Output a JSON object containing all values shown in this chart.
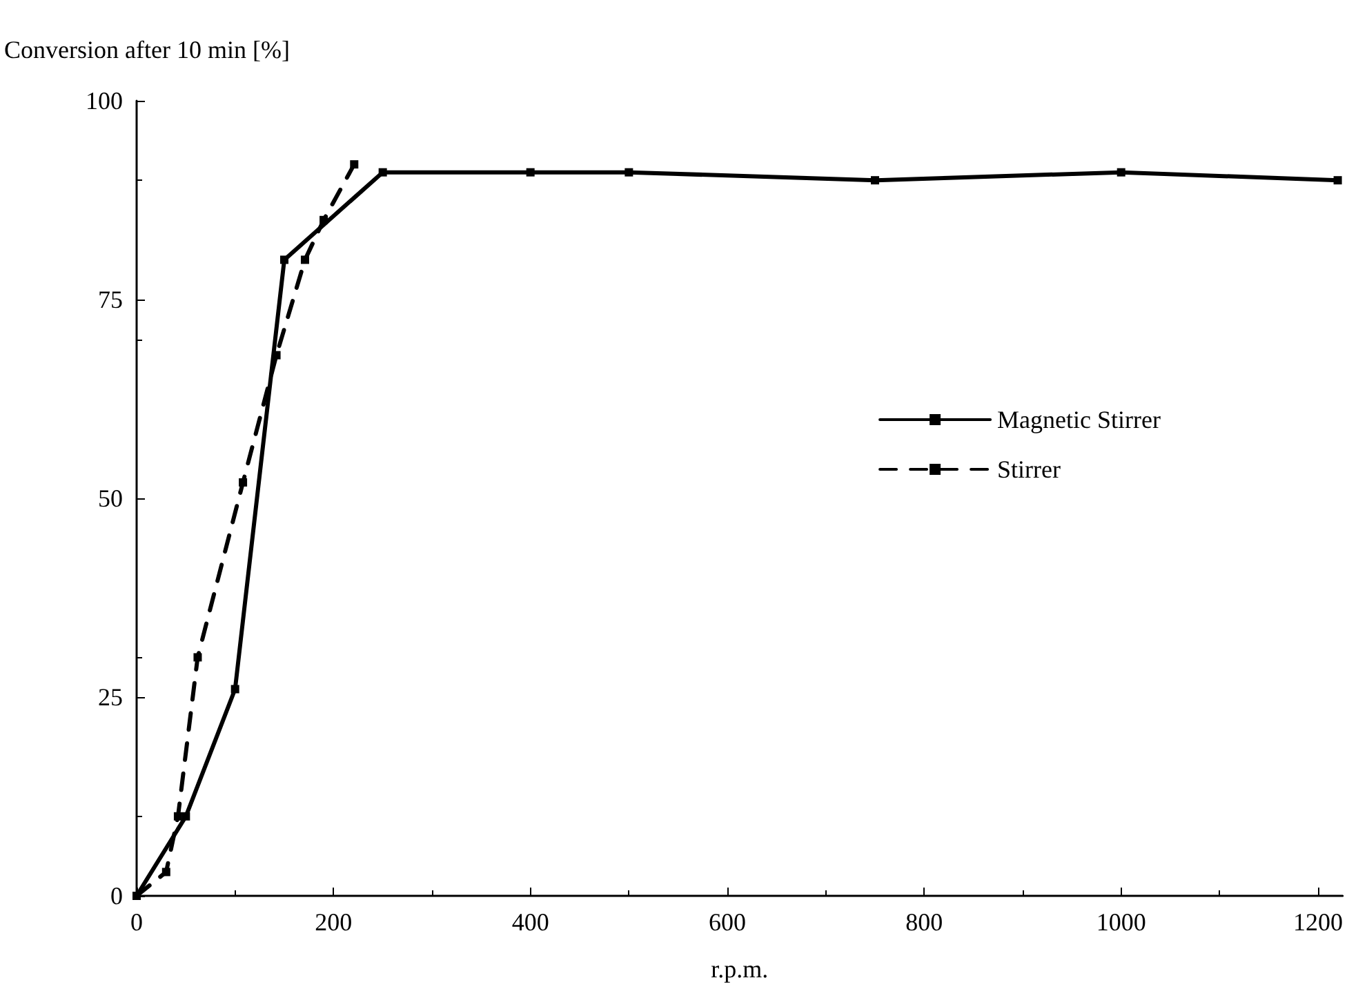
{
  "chart_data": {
    "type": "line",
    "ylabel": "Conversion after 10 min [%]",
    "xlabel": "r.p.m.",
    "xlim": [
      0,
      1225
    ],
    "xticks": [
      0,
      200,
      400,
      600,
      800,
      1000,
      1200
    ],
    "ylim": [
      0,
      100
    ],
    "yticks": [
      0,
      25,
      50,
      75,
      100
    ],
    "grid": false,
    "legend": "right",
    "marker": "square",
    "series": [
      {
        "name": "Magnetic Stirrer",
        "color": "#000000",
        "line_style": "solid",
        "x": [
          0,
          50,
          100,
          150,
          250,
          400,
          500,
          750,
          1000,
          1220
        ],
        "values": [
          0,
          10,
          26,
          80,
          91,
          91,
          91,
          90,
          91,
          90
        ]
      },
      {
        "name": "Stirrer",
        "color": "#000000",
        "line_style": "dashed",
        "x": [
          0,
          30,
          42,
          62,
          108,
          142,
          171,
          190,
          221
        ],
        "values": [
          0,
          3,
          10,
          30,
          52,
          68,
          80,
          85,
          92
        ]
      }
    ]
  }
}
